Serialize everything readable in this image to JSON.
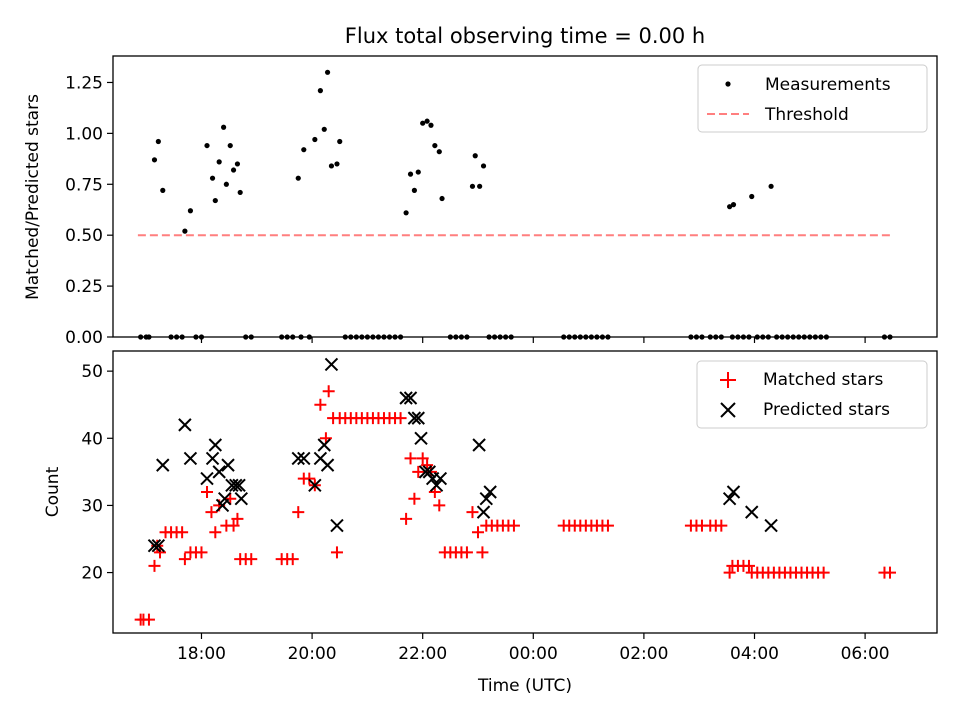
{
  "figure": {
    "title": "Flux total observing time = 0.00 h"
  },
  "chart_data": [
    {
      "type": "scatter",
      "title": "Flux total observing time = 0.00 h",
      "ylabel": "Matched/Predicted stars",
      "xlabel": "",
      "x_axis": "time (UTC), hours relative to 00:00 of the second day",
      "xlim": [
        -7.6,
        7.3
      ],
      "ylim": [
        0,
        1.38
      ],
      "x_ticks": [
        -6,
        -4,
        -2,
        0,
        2,
        4,
        6
      ],
      "y_ticks": [
        0,
        0.25,
        0.5,
        0.75,
        1.0,
        1.25
      ],
      "y_tick_labels": [
        "0.00",
        "0.25",
        "0.50",
        "0.75",
        "1.00",
        "1.25"
      ],
      "legend_position": "top-right",
      "series": [
        {
          "name": "Measurements",
          "marker": "dot",
          "color": "#000000",
          "points": [
            [
              -7.1,
              0.0
            ],
            [
              -7.0,
              0.0
            ],
            [
              -6.95,
              0.0
            ],
            [
              -6.85,
              0.87
            ],
            [
              -6.78,
              0.96
            ],
            [
              -6.7,
              0.72
            ],
            [
              -6.55,
              0.0
            ],
            [
              -6.45,
              0.0
            ],
            [
              -6.35,
              0.0
            ],
            [
              -6.3,
              0.52
            ],
            [
              -6.2,
              0.62
            ],
            [
              -6.1,
              0.0
            ],
            [
              -6.0,
              0.0
            ],
            [
              -5.9,
              0.94
            ],
            [
              -5.8,
              0.78
            ],
            [
              -5.75,
              0.67
            ],
            [
              -5.68,
              0.86
            ],
            [
              -5.6,
              1.03
            ],
            [
              -5.55,
              0.75
            ],
            [
              -5.48,
              0.94
            ],
            [
              -5.42,
              0.82
            ],
            [
              -5.35,
              0.85
            ],
            [
              -5.3,
              0.71
            ],
            [
              -5.2,
              0.0
            ],
            [
              -5.1,
              0.0
            ],
            [
              -4.55,
              0.0
            ],
            [
              -4.45,
              0.0
            ],
            [
              -4.35,
              0.0
            ],
            [
              -4.25,
              0.78
            ],
            [
              -4.2,
              0.0
            ],
            [
              -4.15,
              0.92
            ],
            [
              -4.05,
              0.0
            ],
            [
              -3.95,
              0.97
            ],
            [
              -3.85,
              1.21
            ],
            [
              -3.78,
              1.02
            ],
            [
              -3.72,
              1.3
            ],
            [
              -3.65,
              0.84
            ],
            [
              -3.55,
              0.85
            ],
            [
              -3.5,
              0.96
            ],
            [
              -3.4,
              0.0
            ],
            [
              -3.3,
              0.0
            ],
            [
              -3.2,
              0.0
            ],
            [
              -3.1,
              0.0
            ],
            [
              -3.0,
              0.0
            ],
            [
              -2.9,
              0.0
            ],
            [
              -2.8,
              0.0
            ],
            [
              -2.7,
              0.0
            ],
            [
              -2.6,
              0.0
            ],
            [
              -2.5,
              0.0
            ],
            [
              -2.4,
              0.0
            ],
            [
              -2.3,
              0.61
            ],
            [
              -2.22,
              0.8
            ],
            [
              -2.15,
              0.72
            ],
            [
              -2.08,
              0.81
            ],
            [
              -2.0,
              1.05
            ],
            [
              -1.92,
              1.06
            ],
            [
              -1.85,
              1.04
            ],
            [
              -1.78,
              0.94
            ],
            [
              -1.7,
              0.91
            ],
            [
              -1.65,
              0.68
            ],
            [
              -1.5,
              0.0
            ],
            [
              -1.4,
              0.0
            ],
            [
              -1.3,
              0.0
            ],
            [
              -1.2,
              0.0
            ],
            [
              -1.1,
              0.74
            ],
            [
              -1.05,
              0.89
            ],
            [
              -0.97,
              0.74
            ],
            [
              -0.9,
              0.84
            ],
            [
              -0.8,
              0.0
            ],
            [
              -0.7,
              0.0
            ],
            [
              -0.6,
              0.0
            ],
            [
              -0.5,
              0.0
            ],
            [
              -0.4,
              0.0
            ],
            [
              0.55,
              0.0
            ],
            [
              0.65,
              0.0
            ],
            [
              0.75,
              0.0
            ],
            [
              0.85,
              0.0
            ],
            [
              0.95,
              0.0
            ],
            [
              1.05,
              0.0
            ],
            [
              1.15,
              0.0
            ],
            [
              1.25,
              0.0
            ],
            [
              1.35,
              0.0
            ],
            [
              2.85,
              0.0
            ],
            [
              2.95,
              0.0
            ],
            [
              3.05,
              0.0
            ],
            [
              3.2,
              0.0
            ],
            [
              3.3,
              0.0
            ],
            [
              3.4,
              0.0
            ],
            [
              3.55,
              0.64
            ],
            [
              3.6,
              0.0
            ],
            [
              3.62,
              0.65
            ],
            [
              3.7,
              0.0
            ],
            [
              3.8,
              0.0
            ],
            [
              3.9,
              0.0
            ],
            [
              3.95,
              0.69
            ],
            [
              4.05,
              0.0
            ],
            [
              4.15,
              0.0
            ],
            [
              4.25,
              0.0
            ],
            [
              4.3,
              0.74
            ],
            [
              4.4,
              0.0
            ],
            [
              4.5,
              0.0
            ],
            [
              4.6,
              0.0
            ],
            [
              4.7,
              0.0
            ],
            [
              4.8,
              0.0
            ],
            [
              4.9,
              0.0
            ],
            [
              5.0,
              0.0
            ],
            [
              5.1,
              0.0
            ],
            [
              5.2,
              0.0
            ],
            [
              5.3,
              0.0
            ],
            [
              6.35,
              0.0
            ],
            [
              6.45,
              0.0
            ]
          ]
        },
        {
          "name": "Threshold",
          "marker": "dashed-line",
          "color": "#ff7f7f",
          "points": [
            [
              -7.15,
              0.5
            ],
            [
              6.45,
              0.5
            ]
          ]
        }
      ]
    },
    {
      "type": "scatter",
      "title": "",
      "ylabel": "Count",
      "xlabel": "Time (UTC)",
      "x_axis": "time (UTC), hours relative to 00:00 of the second day",
      "xlim": [
        -7.6,
        7.3
      ],
      "ylim": [
        11,
        53
      ],
      "x_ticks": [
        -6,
        -4,
        -2,
        0,
        2,
        4,
        6
      ],
      "x_tick_labels": [
        "18:00",
        "20:00",
        "22:00",
        "00:00",
        "02:00",
        "04:00",
        "06:00"
      ],
      "y_ticks": [
        20,
        30,
        40,
        50
      ],
      "y_tick_labels": [
        "20",
        "30",
        "40",
        "50"
      ],
      "legend_position": "top-right",
      "series": [
        {
          "name": "Matched stars",
          "marker": "plus",
          "color": "#ff0000",
          "points": [
            [
              -7.1,
              13
            ],
            [
              -7.05,
              13
            ],
            [
              -6.95,
              13
            ],
            [
              -6.85,
              21
            ],
            [
              -6.8,
              24
            ],
            [
              -6.75,
              23
            ],
            [
              -6.65,
              26
            ],
            [
              -6.55,
              26
            ],
            [
              -6.45,
              26
            ],
            [
              -6.35,
              26
            ],
            [
              -6.3,
              22
            ],
            [
              -6.2,
              23
            ],
            [
              -6.1,
              23
            ],
            [
              -6.0,
              23
            ],
            [
              -5.9,
              32
            ],
            [
              -5.82,
              29
            ],
            [
              -5.75,
              26
            ],
            [
              -5.68,
              30
            ],
            [
              -5.55,
              27
            ],
            [
              -5.48,
              31
            ],
            [
              -5.42,
              27
            ],
            [
              -5.35,
              28
            ],
            [
              -5.3,
              22
            ],
            [
              -5.2,
              22
            ],
            [
              -5.1,
              22
            ],
            [
              -4.55,
              22
            ],
            [
              -4.45,
              22
            ],
            [
              -4.35,
              22
            ],
            [
              -4.25,
              29
            ],
            [
              -4.15,
              34
            ],
            [
              -4.05,
              34
            ],
            [
              -3.95,
              33
            ],
            [
              -3.85,
              45
            ],
            [
              -3.75,
              40
            ],
            [
              -3.7,
              47
            ],
            [
              -3.62,
              43
            ],
            [
              -3.55,
              23
            ],
            [
              -3.5,
              43
            ],
            [
              -3.4,
              43
            ],
            [
              -3.3,
              43
            ],
            [
              -3.2,
              43
            ],
            [
              -3.1,
              43
            ],
            [
              -3.0,
              43
            ],
            [
              -2.9,
              43
            ],
            [
              -2.8,
              43
            ],
            [
              -2.7,
              43
            ],
            [
              -2.6,
              43
            ],
            [
              -2.5,
              43
            ],
            [
              -2.4,
              43
            ],
            [
              -2.3,
              28
            ],
            [
              -2.22,
              37
            ],
            [
              -2.15,
              31
            ],
            [
              -2.08,
              35
            ],
            [
              -2.0,
              37
            ],
            [
              -1.92,
              36
            ],
            [
              -1.85,
              35
            ],
            [
              -1.78,
              32
            ],
            [
              -1.7,
              30
            ],
            [
              -1.6,
              23
            ],
            [
              -1.5,
              23
            ],
            [
              -1.4,
              23
            ],
            [
              -1.3,
              23
            ],
            [
              -1.2,
              23
            ],
            [
              -1.1,
              29
            ],
            [
              -1.0,
              26
            ],
            [
              -0.92,
              23
            ],
            [
              -0.85,
              27
            ],
            [
              -0.75,
              27
            ],
            [
              -0.65,
              27
            ],
            [
              -0.55,
              27
            ],
            [
              -0.45,
              27
            ],
            [
              -0.35,
              27
            ],
            [
              0.55,
              27
            ],
            [
              0.65,
              27
            ],
            [
              0.75,
              27
            ],
            [
              0.85,
              27
            ],
            [
              0.95,
              27
            ],
            [
              1.05,
              27
            ],
            [
              1.15,
              27
            ],
            [
              1.25,
              27
            ],
            [
              1.35,
              27
            ],
            [
              2.85,
              27
            ],
            [
              2.95,
              27
            ],
            [
              3.05,
              27
            ],
            [
              3.2,
              27
            ],
            [
              3.3,
              27
            ],
            [
              3.4,
              27
            ],
            [
              3.55,
              20
            ],
            [
              3.6,
              21
            ],
            [
              3.7,
              21
            ],
            [
              3.8,
              21
            ],
            [
              3.9,
              21
            ],
            [
              3.95,
              20
            ],
            [
              4.05,
              20
            ],
            [
              4.15,
              20
            ],
            [
              4.25,
              20
            ],
            [
              4.35,
              20
            ],
            [
              4.45,
              20
            ],
            [
              4.55,
              20
            ],
            [
              4.65,
              20
            ],
            [
              4.75,
              20
            ],
            [
              4.85,
              20
            ],
            [
              4.95,
              20
            ],
            [
              5.05,
              20
            ],
            [
              5.15,
              20
            ],
            [
              5.25,
              20
            ],
            [
              6.35,
              20
            ],
            [
              6.45,
              20
            ]
          ]
        },
        {
          "name": "Predicted stars",
          "marker": "x",
          "color": "#000000",
          "points": [
            [
              -6.85,
              24
            ],
            [
              -6.78,
              24
            ],
            [
              -6.7,
              36
            ],
            [
              -6.3,
              42
            ],
            [
              -6.2,
              37
            ],
            [
              -5.9,
              34
            ],
            [
              -5.8,
              37
            ],
            [
              -5.75,
              39
            ],
            [
              -5.68,
              35
            ],
            [
              -5.62,
              30
            ],
            [
              -5.58,
              31
            ],
            [
              -5.52,
              36
            ],
            [
              -5.45,
              33
            ],
            [
              -5.38,
              33
            ],
            [
              -5.32,
              33
            ],
            [
              -5.28,
              31
            ],
            [
              -4.25,
              37
            ],
            [
              -4.15,
              37
            ],
            [
              -3.95,
              33
            ],
            [
              -3.85,
              37
            ],
            [
              -3.78,
              39
            ],
            [
              -3.72,
              36
            ],
            [
              -3.65,
              51
            ],
            [
              -3.55,
              27
            ],
            [
              -2.3,
              46
            ],
            [
              -2.22,
              46
            ],
            [
              -2.15,
              43
            ],
            [
              -2.08,
              43
            ],
            [
              -2.03,
              40
            ],
            [
              -1.95,
              35
            ],
            [
              -1.88,
              35
            ],
            [
              -1.82,
              34
            ],
            [
              -1.75,
              33
            ],
            [
              -1.68,
              34
            ],
            [
              -0.98,
              39
            ],
            [
              -0.9,
              29
            ],
            [
              -0.85,
              31
            ],
            [
              -0.78,
              32
            ],
            [
              3.55,
              31
            ],
            [
              3.62,
              32
            ],
            [
              3.95,
              29
            ],
            [
              4.3,
              27
            ]
          ]
        }
      ]
    }
  ]
}
